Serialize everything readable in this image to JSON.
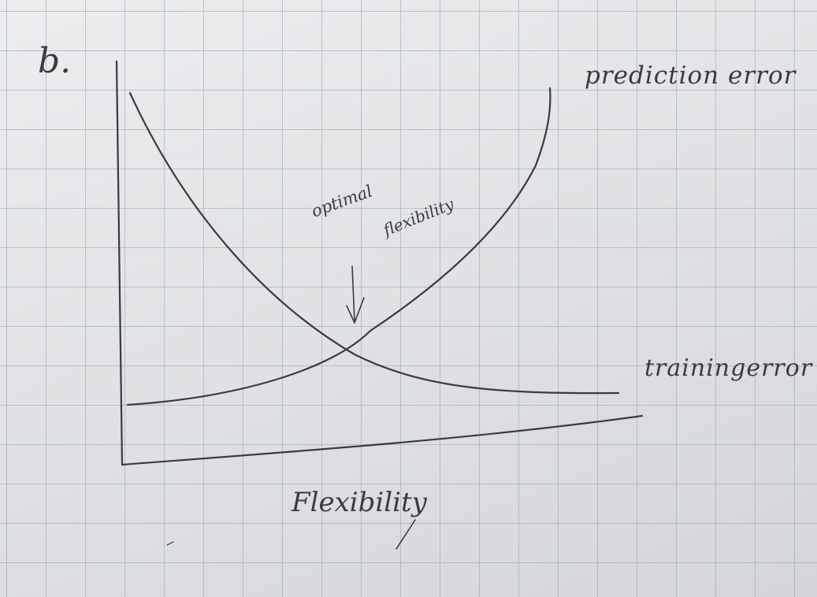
{
  "diagram": {
    "part_label": "b.",
    "curves": {
      "prediction_error": "prediction error",
      "training_error": "trainingerror"
    },
    "annotation": {
      "line1": "optimal",
      "line2": "flexibility"
    },
    "x_axis_label": "Flexibility"
  },
  "style": {
    "ink_color": "#3a3a3f",
    "paper_color": "#e2e3e6",
    "grid_color": "#96a0af"
  }
}
